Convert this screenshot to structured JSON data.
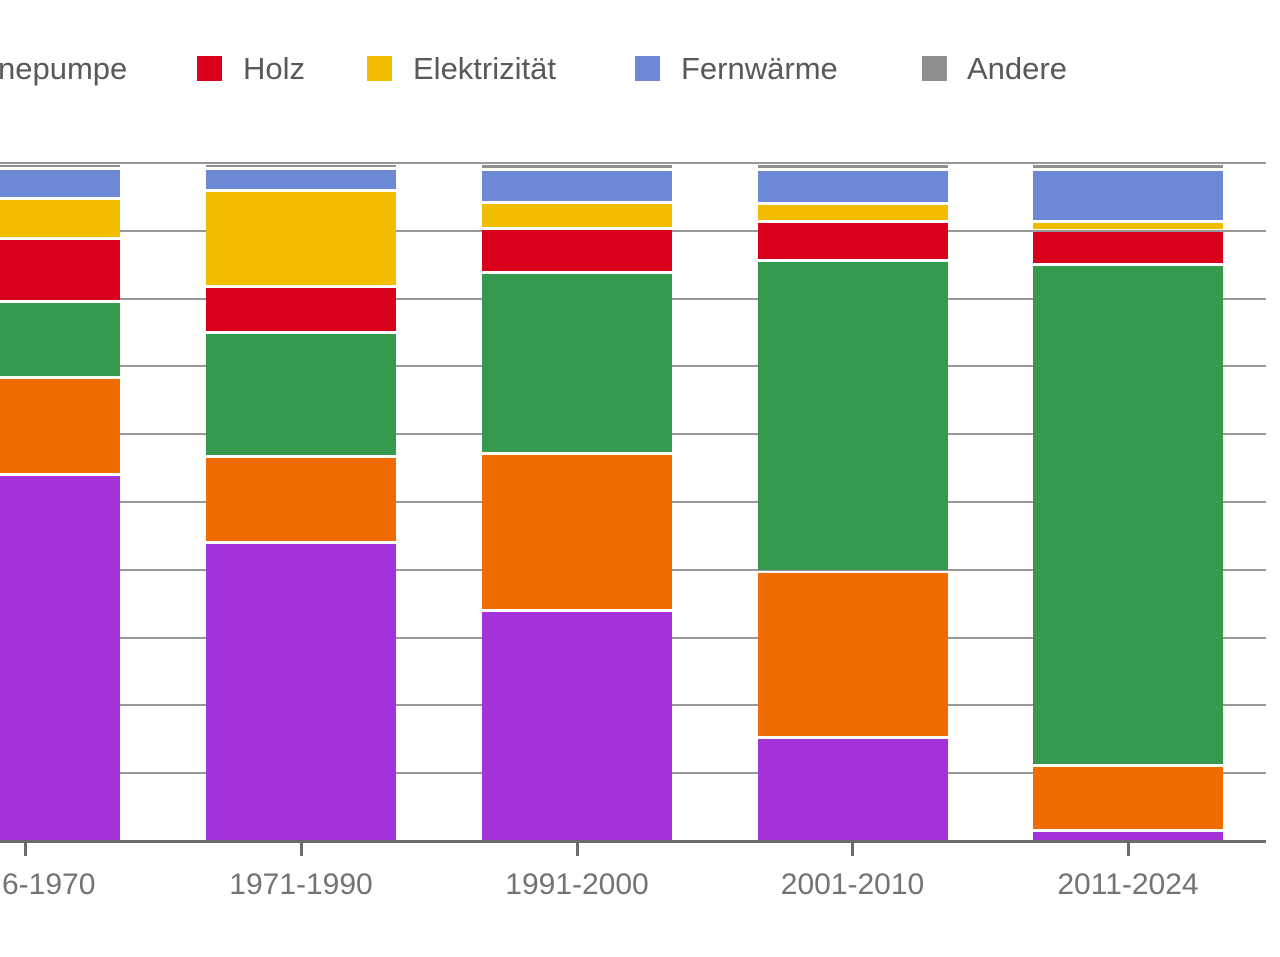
{
  "window": {
    "description": "Cropped 100%-stacked bar chart (Datawrapper style) of heating energy sources by building construction period; left edge of chart is cut off by the screenshot"
  },
  "colors": {
    "purple_series": "#a432da",
    "orange_series": "#f16c00",
    "green_series": "#369a4e",
    "red_series": "#d9001c",
    "yellow_series": "#f2bd00",
    "blue_series": "#6d88d5",
    "gray_series": "#8f8f8f",
    "gridline": "#989898",
    "axis": "#6b6b6b",
    "x_label_text": "#737373",
    "legend_text": "#595959",
    "background": "#ffffff"
  },
  "legend": {
    "items": [
      {
        "label": "nepumpe",
        "swatch_color": null,
        "note": "text fragment, legend item cut off at left image edge (tail of Wärmepumpe)"
      },
      {
        "label": "Holz",
        "swatch_color": "#d9001c"
      },
      {
        "label": "Elektrizität",
        "swatch_color": "#f2bd00"
      },
      {
        "label": "Fernwärme",
        "swatch_color": "#6d88d5"
      },
      {
        "label": "Andere",
        "swatch_color": "#8f8f8f"
      }
    ]
  },
  "x_axis": {
    "labels": [
      "6-1970",
      "1971-1990",
      "1991-2000",
      "2001-2010",
      "2011-2024"
    ],
    "note": "first label is cut off by the left image edge"
  },
  "chart_data": {
    "type": "bar",
    "subtype": "stacked-100-percent-vertical",
    "categories": [
      "6-1970",
      "1971-1990",
      "1991-2000",
      "2001-2010",
      "2011-2024"
    ],
    "series": [
      {
        "key": "violett",
        "name": null,
        "visible_label": null,
        "color": "#a432da",
        "values": [
          54.0,
          44.0,
          34.0,
          15.3,
          1.5
        ]
      },
      {
        "key": "orange",
        "name": null,
        "visible_label": null,
        "color": "#f16c00",
        "values": [
          14.3,
          12.7,
          23.2,
          24.5,
          9.6
        ]
      },
      {
        "key": "waermepumpe",
        "name": "Wärmepumpe",
        "visible_label": "nepumpe",
        "color": "#369a4e",
        "values": [
          11.3,
          18.3,
          26.6,
          45.8,
          73.9
        ]
      },
      {
        "key": "holz",
        "name": "Holz",
        "visible_label": "Holz",
        "color": "#d9001c",
        "values": [
          9.3,
          6.8,
          6.5,
          5.7,
          5.0
        ]
      },
      {
        "key": "elektrizitaet",
        "name": "Elektrizität",
        "visible_label": "Elektrizität",
        "color": "#f2bd00",
        "values": [
          5.9,
          14.2,
          3.9,
          2.7,
          1.3
        ]
      },
      {
        "key": "fernwaerme",
        "name": "Fernwärme",
        "visible_label": "Fernwärme",
        "color": "#6d88d5",
        "values": [
          4.4,
          3.2,
          4.8,
          5.0,
          7.7
        ]
      },
      {
        "key": "andere",
        "name": "Andere",
        "visible_label": "Andere",
        "color": "#8f8f8f",
        "values": [
          0.8,
          0.8,
          1.0,
          1.0,
          1.0
        ]
      }
    ],
    "ylim": [
      0,
      100
    ],
    "y_unit": "percent",
    "gridlines": "horizontal, every 10 percent, gray, drawn behind bars",
    "legend_position": "top",
    "notes": [
      "values in percent, estimated from 10%-gridlines",
      "series listed bottom-to-top of stack",
      "legend entries for the violet and orange series are outside the cropped image"
    ]
  }
}
